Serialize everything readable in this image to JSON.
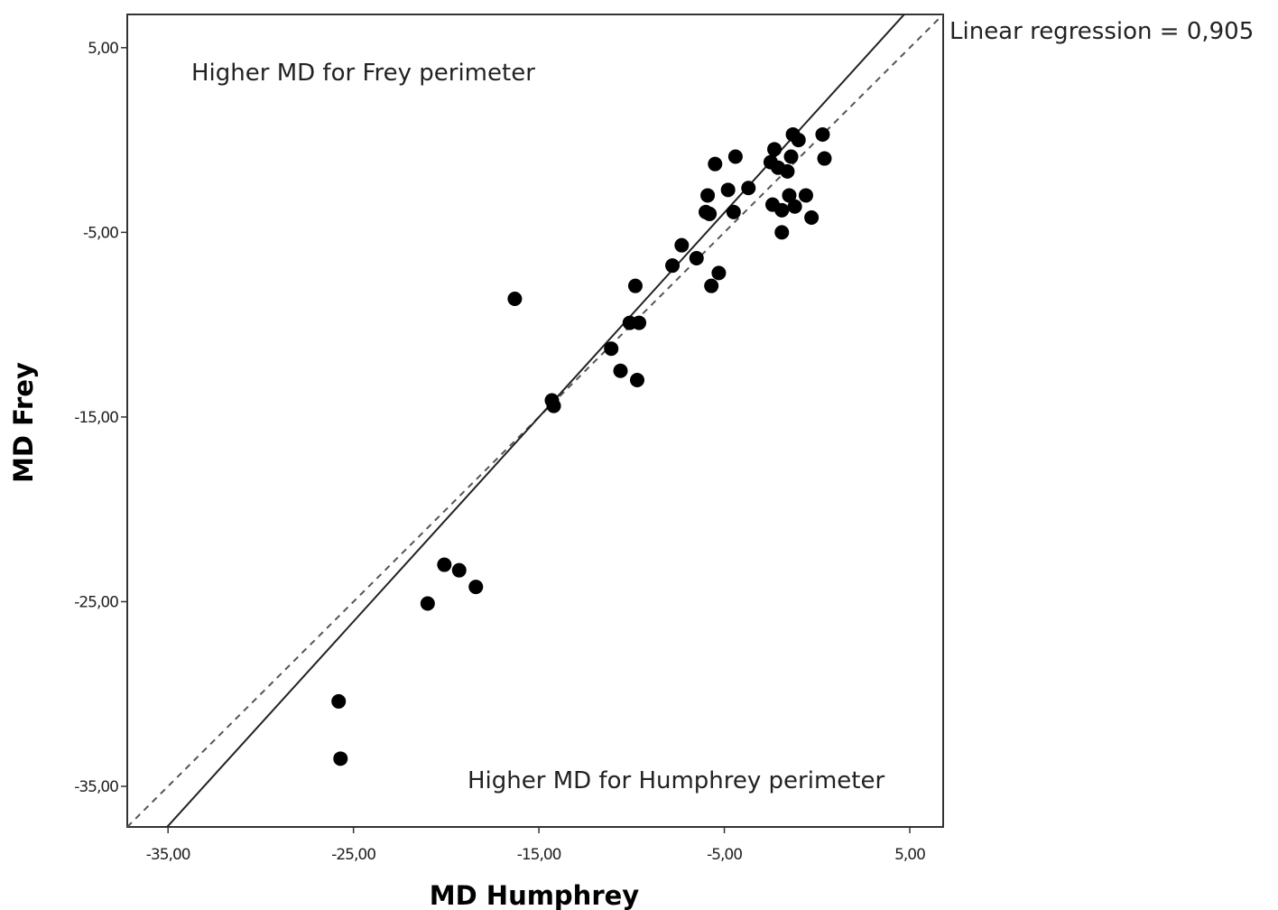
{
  "chart_data": {
    "type": "scatter",
    "title": "",
    "xlabel": "MD Humphrey",
    "ylabel": "MD Frey",
    "xlim": [
      -37.2,
      6.8
    ],
    "ylim": [
      -37.2,
      6.8
    ],
    "x_ticks": [
      -35,
      -25,
      -15,
      -5,
      5
    ],
    "x_tick_labels": [
      "-35,00",
      "-25,00",
      "-15,00",
      "-5,00",
      "5,00"
    ],
    "y_ticks": [
      5,
      -5,
      -15,
      -25,
      -35
    ],
    "y_tick_labels": [
      "5,00",
      "-5,00",
      "-15,00",
      "-25,00",
      "-35,00"
    ],
    "grid": false,
    "annotations": {
      "upper_left": "Higher MD for Frey perimeter",
      "lower_right": "Higher MD for Humphrey perimeter",
      "regression": "Linear regression = 0,905"
    },
    "reference_line": {
      "style": "dashed",
      "description": "identity",
      "slope": 1,
      "intercept": 0
    },
    "regression_line": {
      "style": "solid",
      "slope": 1.107,
      "intercept": 1.6
    },
    "points": [
      {
        "x": -25.8,
        "y": -30.4
      },
      {
        "x": -25.7,
        "y": -33.5
      },
      {
        "x": -21.0,
        "y": -25.1
      },
      {
        "x": -20.1,
        "y": -23.0
      },
      {
        "x": -19.3,
        "y": -23.3
      },
      {
        "x": -18.4,
        "y": -24.2
      },
      {
        "x": -16.3,
        "y": -8.6
      },
      {
        "x": -14.3,
        "y": -14.1
      },
      {
        "x": -14.2,
        "y": -14.4
      },
      {
        "x": -11.1,
        "y": -11.3
      },
      {
        "x": -10.6,
        "y": -12.5
      },
      {
        "x": -10.1,
        "y": -9.9
      },
      {
        "x": -9.6,
        "y": -9.9
      },
      {
        "x": -9.8,
        "y": -7.9
      },
      {
        "x": -9.7,
        "y": -13.0
      },
      {
        "x": -7.8,
        "y": -6.8
      },
      {
        "x": -7.3,
        "y": -5.7
      },
      {
        "x": -6.5,
        "y": -6.4
      },
      {
        "x": -5.7,
        "y": -7.9
      },
      {
        "x": -5.3,
        "y": -7.2
      },
      {
        "x": -6.0,
        "y": -3.9
      },
      {
        "x": -5.9,
        "y": -3.0
      },
      {
        "x": -5.8,
        "y": -4.0
      },
      {
        "x": -5.5,
        "y": -1.3
      },
      {
        "x": -4.8,
        "y": -2.7
      },
      {
        "x": -4.5,
        "y": -3.9
      },
      {
        "x": -4.4,
        "y": -0.9
      },
      {
        "x": -3.7,
        "y": -2.6
      },
      {
        "x": -2.5,
        "y": -1.2
      },
      {
        "x": -2.3,
        "y": -0.5
      },
      {
        "x": -2.1,
        "y": -1.5
      },
      {
        "x": -2.4,
        "y": -3.5
      },
      {
        "x": -1.9,
        "y": -3.8
      },
      {
        "x": -1.6,
        "y": -1.7
      },
      {
        "x": -1.5,
        "y": -3.0
      },
      {
        "x": -1.4,
        "y": -0.9
      },
      {
        "x": -1.2,
        "y": -3.6
      },
      {
        "x": -1.3,
        "y": 0.3
      },
      {
        "x": -1.0,
        "y": 0.0
      },
      {
        "x": -0.6,
        "y": -3.0
      },
      {
        "x": -0.3,
        "y": -4.2
      },
      {
        "x": -1.9,
        "y": -5.0
      },
      {
        "x": 0.3,
        "y": 0.3
      },
      {
        "x": 0.4,
        "y": -1.0
      }
    ]
  }
}
